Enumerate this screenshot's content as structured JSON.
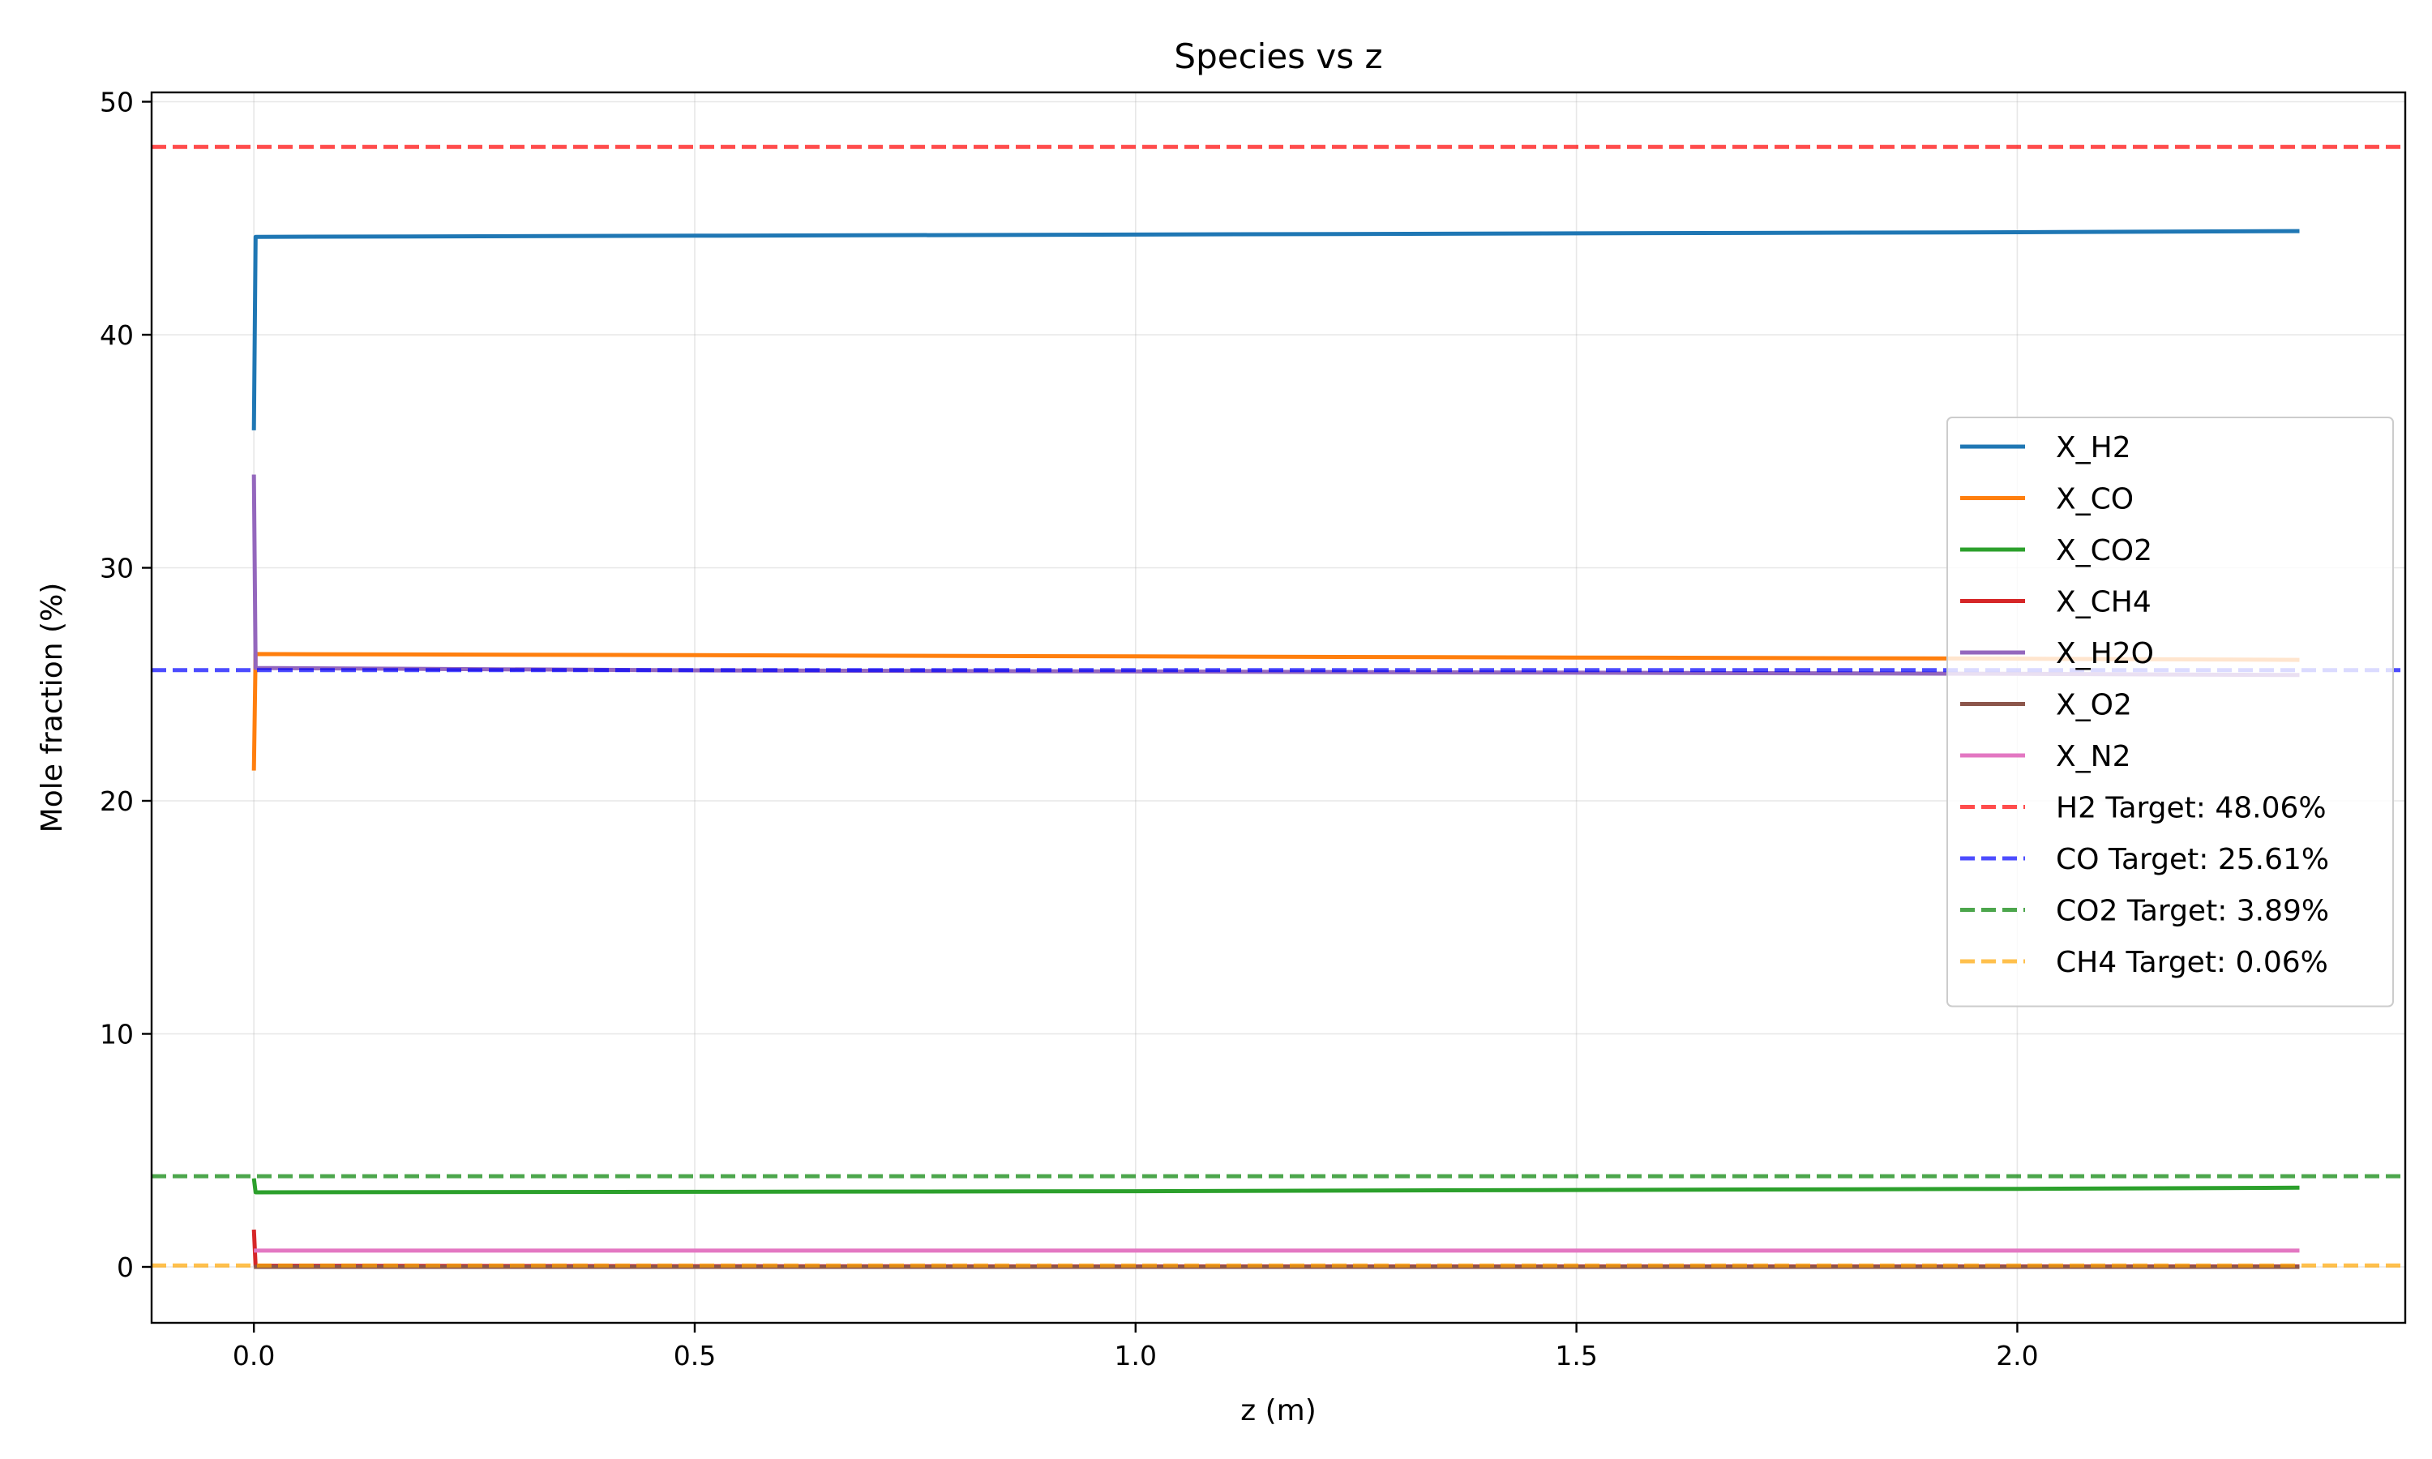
{
  "chart_data": {
    "type": "line",
    "title": "Species vs z",
    "xlabel": "z (m)",
    "ylabel": "Mole fraction (%)",
    "xlim": [
      -0.116,
      2.44
    ],
    "ylim": [
      -2.4,
      50.4
    ],
    "xticks": [
      0.0,
      0.5,
      1.0,
      1.5,
      2.0
    ],
    "xtick_labels": [
      "0.0",
      "0.5",
      "1.0",
      "1.5",
      "2.0"
    ],
    "yticks": [
      0,
      10,
      20,
      30,
      40,
      50
    ],
    "ytick_labels": [
      "0",
      "10",
      "20",
      "30",
      "40",
      "50"
    ],
    "grid": true,
    "legend_position": "center-right",
    "series": [
      {
        "name": "X_H2",
        "color": "#1f77b4",
        "style": "solid",
        "x": [
          0,
          0.002,
          0.5,
          1.0,
          1.5,
          2.0,
          2.32
        ],
        "y": [
          35.9,
          44.2,
          44.25,
          44.3,
          44.35,
          44.4,
          44.45
        ]
      },
      {
        "name": "X_CO",
        "color": "#ff7f0e",
        "style": "solid",
        "x": [
          0,
          0.002,
          0.5,
          1.0,
          1.5,
          2.0,
          2.32
        ],
        "y": [
          21.3,
          26.3,
          26.25,
          26.2,
          26.15,
          26.1,
          26.05
        ]
      },
      {
        "name": "X_CO2",
        "color": "#2ca02c",
        "style": "solid",
        "x": [
          0,
          0.002,
          0.5,
          1.0,
          1.5,
          2.0,
          2.32
        ],
        "y": [
          3.8,
          3.2,
          3.22,
          3.25,
          3.3,
          3.35,
          3.4
        ]
      },
      {
        "name": "X_CH4",
        "color": "#d62728",
        "style": "solid",
        "x": [
          0,
          0.002,
          0.5,
          1.0,
          1.5,
          2.0,
          2.32
        ],
        "y": [
          1.6,
          0.05,
          0.03,
          0.02,
          0.02,
          0.02,
          0.02
        ]
      },
      {
        "name": "X_H2O",
        "color": "#9467bd",
        "style": "solid",
        "x": [
          0,
          0.002,
          0.5,
          1.0,
          1.5,
          2.0,
          2.32
        ],
        "y": [
          34.0,
          25.7,
          25.6,
          25.55,
          25.5,
          25.45,
          25.4
        ]
      },
      {
        "name": "X_O2",
        "color": "#8c564b",
        "style": "solid",
        "x": [
          0,
          0.002,
          0.5,
          1.0,
          1.5,
          2.0,
          2.32
        ],
        "y": [
          0.0,
          0.0,
          0.0,
          0.0,
          0.0,
          0.0,
          0.0
        ]
      },
      {
        "name": "X_N2",
        "color": "#e377c2",
        "style": "solid",
        "x": [
          0,
          0.002,
          0.5,
          1.0,
          1.5,
          2.0,
          2.32
        ],
        "y": [
          0.7,
          0.7,
          0.7,
          0.7,
          0.7,
          0.7,
          0.7
        ]
      }
    ],
    "reference_lines": [
      {
        "name": "H2 Target: 48.06%",
        "color": "#ff0000",
        "style": "dashed",
        "y": 48.06
      },
      {
        "name": "CO Target: 25.61%",
        "color": "#0000ff",
        "style": "dashed",
        "y": 25.61
      },
      {
        "name": "CO2 Target: 3.89%",
        "color": "#008000",
        "style": "dashed",
        "y": 3.89
      },
      {
        "name": "CH4 Target: 0.06%",
        "color": "#ffa500",
        "style": "dashed",
        "y": 0.06
      }
    ]
  }
}
